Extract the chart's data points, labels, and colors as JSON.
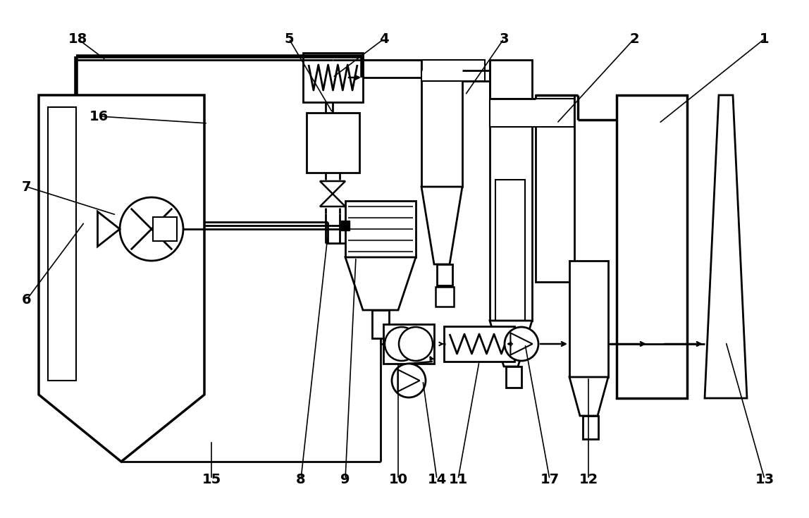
{
  "background": "#ffffff",
  "lc": "#000000",
  "lw": 1.8,
  "figsize": [
    11.48,
    7.35
  ],
  "dpi": 100,
  "xlim": [
    0,
    1148
  ],
  "ylim": [
    0,
    735
  ]
}
